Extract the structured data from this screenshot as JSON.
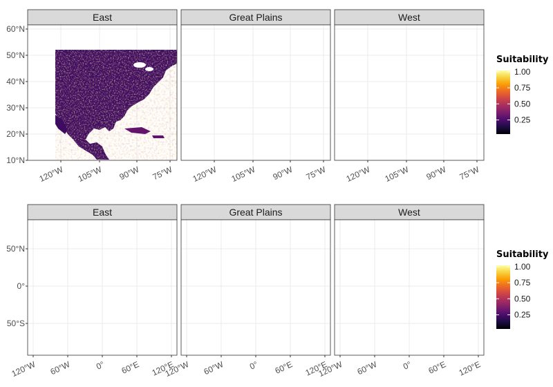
{
  "colors": {
    "ocean": "#ffffff",
    "strip_bg": "#d9d9d9",
    "panel_border": "#333333",
    "grid": "#ebebeb",
    "scale": [
      "#000004",
      "#1b0c41",
      "#4a0c6b",
      "#781c6d",
      "#a52c60",
      "#cf4446",
      "#ed6925",
      "#fb9b06",
      "#f7d13d",
      "#fcffa4"
    ]
  },
  "figure": {
    "panels": [
      "East",
      "Great Plains",
      "West"
    ]
  },
  "rows": [
    {
      "id": "north-america",
      "x_ticks": [
        "120°W",
        "105°W",
        "90°W",
        "75°W"
      ],
      "y_ticks": [
        "60°N",
        "50°N",
        "40°N",
        "30°N",
        "20°N",
        "10°N"
      ],
      "legend": {
        "title": "Suitability",
        "labels": [
          "1.00",
          "0.75",
          "0.50",
          "0.25"
        ],
        "values": [
          1.0,
          0.75,
          0.5,
          0.25
        ]
      }
    },
    {
      "id": "global",
      "x_ticks": [
        "120°W",
        "60°W",
        "0°",
        "60°E",
        "120°E"
      ],
      "y_ticks": [
        "50°N",
        "0°",
        "50°S"
      ],
      "legend": {
        "title": "Suitability",
        "labels": [
          "1.00",
          "0.75",
          "0.50",
          "0.25"
        ],
        "values": [
          1.0,
          0.75,
          0.5,
          0.25
        ]
      }
    }
  ]
}
